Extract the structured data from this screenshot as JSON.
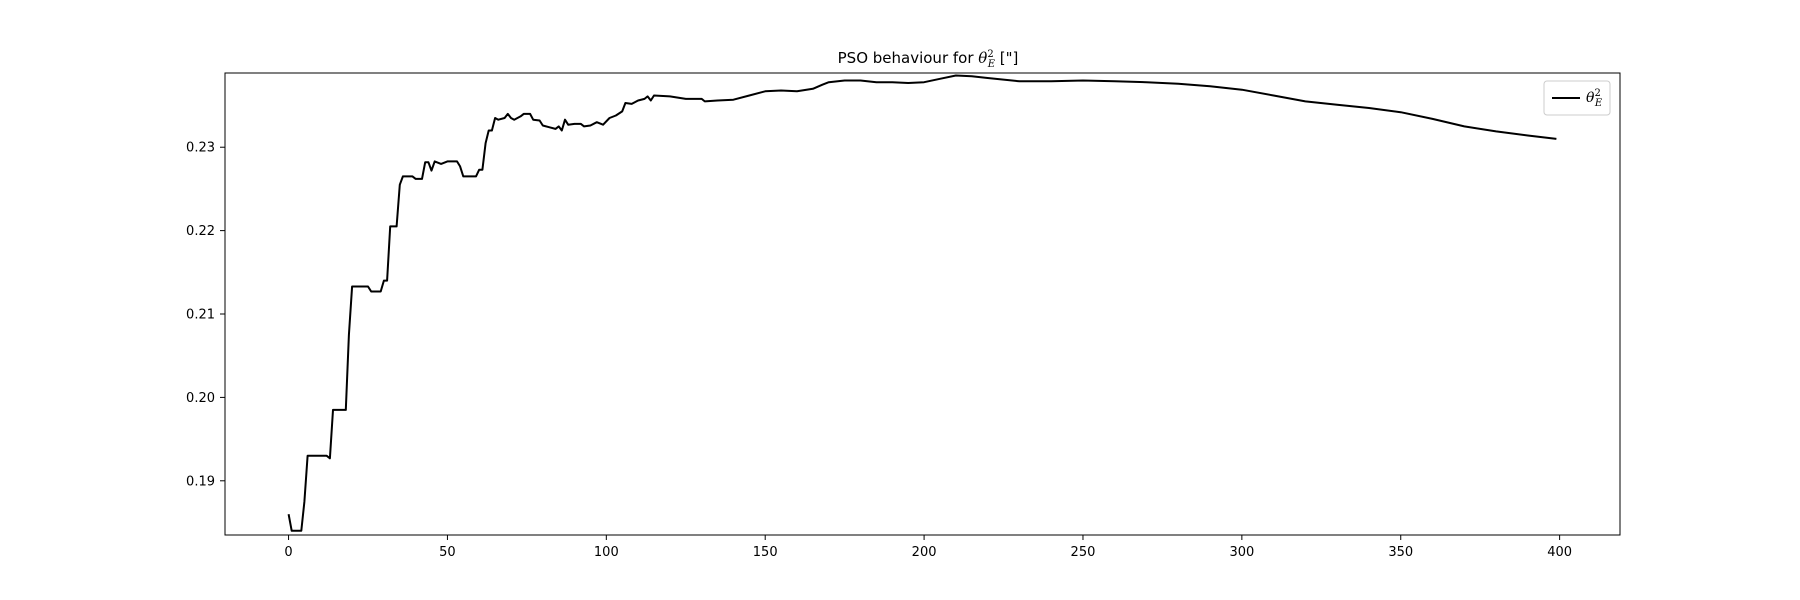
{
  "chart_data": {
    "type": "line",
    "title_prefix": "PSO behaviour for ",
    "title_symbol": "θ",
    "title_sup": "2",
    "title_sub": "E",
    "title_suffix": " [\"]",
    "xlabel": "",
    "ylabel": "",
    "xlim": [
      -20,
      419
    ],
    "ylim": [
      0.1835,
      0.2389
    ],
    "xticks": [
      0,
      50,
      100,
      150,
      200,
      250,
      300,
      350,
      400
    ],
    "yticks": [
      0.19,
      0.2,
      0.21,
      0.22,
      0.23
    ],
    "ytick_labels": [
      "0.19",
      "0.20",
      "0.21",
      "0.22",
      "0.23"
    ],
    "grid": false,
    "legend_position": "top-right",
    "series": [
      {
        "name_symbol": "θ",
        "name_sup": "2",
        "name_sub": "E",
        "color": "#000000",
        "points": [
          [
            0,
            0.186
          ],
          [
            1,
            0.184
          ],
          [
            4,
            0.184
          ],
          [
            5,
            0.1875
          ],
          [
            6,
            0.193
          ],
          [
            12,
            0.193
          ],
          [
            13,
            0.1927
          ],
          [
            14,
            0.1985
          ],
          [
            18,
            0.1985
          ],
          [
            19,
            0.2075
          ],
          [
            20,
            0.2133
          ],
          [
            25,
            0.2133
          ],
          [
            26,
            0.2127
          ],
          [
            29,
            0.2127
          ],
          [
            30,
            0.214
          ],
          [
            31,
            0.214
          ],
          [
            32,
            0.2205
          ],
          [
            34,
            0.2205
          ],
          [
            35,
            0.2255
          ],
          [
            36,
            0.2265
          ],
          [
            39,
            0.2265
          ],
          [
            40,
            0.2262
          ],
          [
            42,
            0.2262
          ],
          [
            43,
            0.2282
          ],
          [
            44,
            0.2282
          ],
          [
            45,
            0.2272
          ],
          [
            46,
            0.2283
          ],
          [
            48,
            0.228
          ],
          [
            50,
            0.2283
          ],
          [
            53,
            0.2283
          ],
          [
            54,
            0.2277
          ],
          [
            55,
            0.2265
          ],
          [
            59,
            0.2265
          ],
          [
            60,
            0.2273
          ],
          [
            61,
            0.2273
          ],
          [
            62,
            0.2305
          ],
          [
            63,
            0.232
          ],
          [
            64,
            0.232
          ],
          [
            65,
            0.2335
          ],
          [
            66,
            0.2333
          ],
          [
            68,
            0.2335
          ],
          [
            69,
            0.234
          ],
          [
            70,
            0.2335
          ],
          [
            71,
            0.2333
          ],
          [
            73,
            0.2337
          ],
          [
            74,
            0.234
          ],
          [
            76,
            0.234
          ],
          [
            77,
            0.2333
          ],
          [
            79,
            0.2332
          ],
          [
            80,
            0.2326
          ],
          [
            82,
            0.2324
          ],
          [
            84,
            0.2322
          ],
          [
            85,
            0.2325
          ],
          [
            86,
            0.232
          ],
          [
            87,
            0.2333
          ],
          [
            88,
            0.2327
          ],
          [
            90,
            0.2328
          ],
          [
            92,
            0.2328
          ],
          [
            93,
            0.2325
          ],
          [
            95,
            0.2326
          ],
          [
            97,
            0.233
          ],
          [
            99,
            0.2327
          ],
          [
            101,
            0.2335
          ],
          [
            103,
            0.2338
          ],
          [
            105,
            0.2343
          ],
          [
            106,
            0.2353
          ],
          [
            108,
            0.2352
          ],
          [
            110,
            0.2356
          ],
          [
            112,
            0.2358
          ],
          [
            113,
            0.2361
          ],
          [
            114,
            0.2356
          ],
          [
            115,
            0.2362
          ],
          [
            120,
            0.2361
          ],
          [
            125,
            0.2358
          ],
          [
            130,
            0.2358
          ],
          [
            131,
            0.2355
          ],
          [
            135,
            0.2356
          ],
          [
            140,
            0.2357
          ],
          [
            145,
            0.2362
          ],
          [
            150,
            0.2367
          ],
          [
            155,
            0.2368
          ],
          [
            160,
            0.2367
          ],
          [
            165,
            0.237
          ],
          [
            168,
            0.2375
          ],
          [
            170,
            0.2378
          ],
          [
            175,
            0.238
          ],
          [
            180,
            0.238
          ],
          [
            185,
            0.2378
          ],
          [
            190,
            0.2378
          ],
          [
            195,
            0.2377
          ],
          [
            200,
            0.2378
          ],
          [
            205,
            0.2382
          ],
          [
            210,
            0.2386
          ],
          [
            215,
            0.2385
          ],
          [
            220,
            0.2383
          ],
          [
            230,
            0.2379
          ],
          [
            240,
            0.2379
          ],
          [
            250,
            0.238
          ],
          [
            260,
            0.2379
          ],
          [
            270,
            0.2378
          ],
          [
            280,
            0.2376
          ],
          [
            290,
            0.2373
          ],
          [
            300,
            0.2369
          ],
          [
            310,
            0.2362
          ],
          [
            320,
            0.2355
          ],
          [
            330,
            0.2351
          ],
          [
            340,
            0.2347
          ],
          [
            350,
            0.2342
          ],
          [
            360,
            0.2334
          ],
          [
            370,
            0.2325
          ],
          [
            380,
            0.2319
          ],
          [
            390,
            0.2314
          ],
          [
            399,
            0.231
          ]
        ]
      }
    ]
  }
}
